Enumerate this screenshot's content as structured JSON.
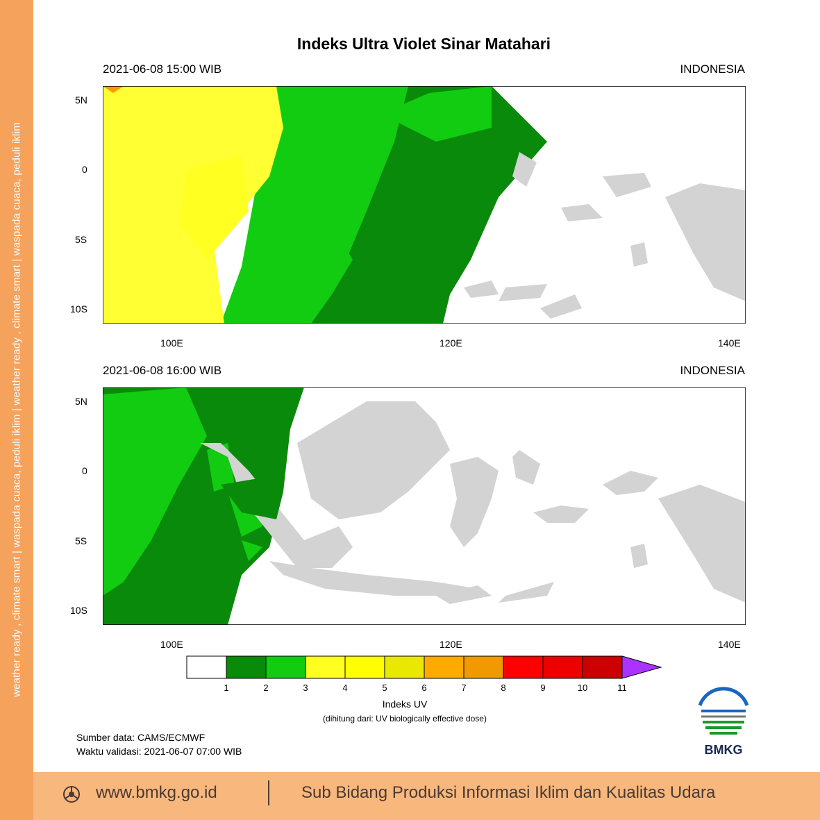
{
  "side_text": "weather ready , climate smart  |  waspada cuaca, peduli iklim  |  weather ready , climate smart  |  waspada cuaca, peduli iklim",
  "title": "Indeks Ultra Violet Sinar Matahari",
  "panels": [
    {
      "time": "2021-06-08  15:00 WIB",
      "region": "INDONESIA"
    },
    {
      "time": "2021-06-08  16:00 WIB",
      "region": "INDONESIA"
    }
  ],
  "lat_ticks": [
    "5N",
    "0",
    "5S",
    "10S"
  ],
  "lon_ticks": [
    "100E",
    "120E",
    "140E"
  ],
  "colorbar": {
    "labels": [
      "1",
      "2",
      "3",
      "4",
      "5",
      "6",
      "7",
      "8",
      "9",
      "10",
      "11"
    ],
    "colors": [
      "#ffffff",
      "#0a8a0a",
      "#11cc11",
      "#ffff22",
      "#ffff00",
      "#e8e800",
      "#ffaa00",
      "#f09a00",
      "#ff0000",
      "#ee0000",
      "#cc0000",
      "#aa33ff"
    ],
    "title": "Indeks UV",
    "subtitle": "(dihitung dari: UV biologically effective dose)"
  },
  "source": "Sumber data: CAMS/ECMWF",
  "validity": "Waktu validasi: 2021-06-07 07:00 WIB",
  "logo_text": "BMKG",
  "footer": {
    "website": "www.bmkg.go.id",
    "division": "Sub Bidang Produksi Informasi Iklim dan Kualitas Udara"
  }
}
